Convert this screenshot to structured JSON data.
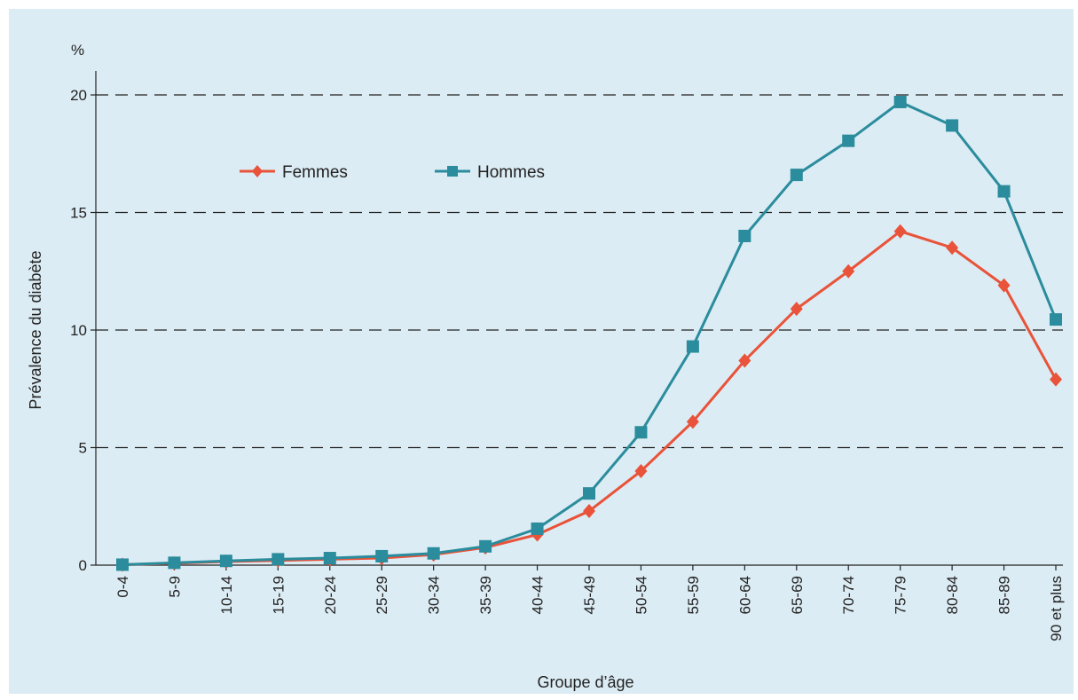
{
  "chart_data": {
    "type": "line",
    "title": "",
    "unit": "%",
    "xlabel": "Groupe d’âge",
    "ylabel": "Prévalence du diabète",
    "ylim": [
      0,
      20
    ],
    "yticks": [
      "0",
      "5",
      "10",
      "15",
      "20"
    ],
    "ytick_values": [
      0,
      5,
      10,
      15,
      20
    ],
    "grid": "horizontal dashed",
    "legend_position": "top-left",
    "categories": [
      "0-4",
      "5-9",
      "10-14",
      "15-19",
      "20-24",
      "25-29",
      "30-34",
      "35-39",
      "40-44",
      "45-49",
      "50-54",
      "55-59",
      "60-64",
      "65-69",
      "70-74",
      "75-79",
      "80-84",
      "85-89",
      "90 et plus"
    ],
    "series": [
      {
        "name": "Femmes",
        "color": "#e8533a",
        "marker": "diamond",
        "values": [
          0.02,
          0.08,
          0.15,
          0.2,
          0.25,
          0.3,
          0.45,
          0.75,
          1.3,
          2.3,
          4.0,
          6.1,
          8.7,
          10.9,
          12.5,
          14.2,
          13.5,
          11.9,
          7.9
        ]
      },
      {
        "name": "Hommes",
        "color": "#2a8c9c",
        "marker": "square",
        "values": [
          0.02,
          0.1,
          0.18,
          0.25,
          0.3,
          0.38,
          0.5,
          0.8,
          1.55,
          3.05,
          5.65,
          9.3,
          14.0,
          16.6,
          18.05,
          19.7,
          18.7,
          15.9,
          10.45
        ]
      }
    ]
  }
}
